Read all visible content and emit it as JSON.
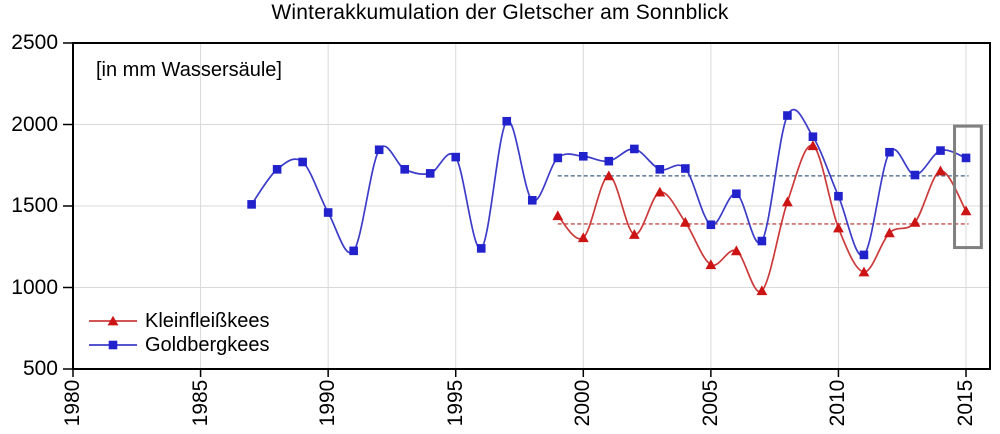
{
  "title": "Winterakkumulation der Gletscher am Sonnblick",
  "chart_data": {
    "type": "line",
    "title": "Winterakkumulation der Gletscher am Sonnblick",
    "unit_label": "[in mm Wassersäule]",
    "xlabel": "",
    "ylabel": "",
    "x_range": [
      1980,
      2015.94
    ],
    "y_range": [
      500,
      2500
    ],
    "x_ticks": [
      1980,
      1985,
      1990,
      1995,
      2000,
      2005,
      2010,
      2015
    ],
    "y_ticks": [
      500,
      1000,
      1500,
      2000,
      2500
    ],
    "grid": {
      "vertical": [
        1985,
        1990,
        1995,
        2000,
        2005,
        2010,
        2015
      ],
      "horizontal": [
        1000,
        1500,
        2000
      ]
    },
    "legend_position": "bottom-left-inside",
    "series": [
      {
        "name": "Kleinfleißkees",
        "marker": "triangle",
        "line_color": "#cc3b3b",
        "marker_color": "#cc1414",
        "x": [
          1999,
          2000,
          2001,
          2002,
          2003,
          2004,
          2005,
          2006,
          2007,
          2008,
          2009,
          2010,
          2011,
          2012,
          2013,
          2014,
          2015
        ],
        "values": [
          1440,
          1305,
          1685,
          1325,
          1585,
          1400,
          1140,
          1225,
          980,
          1525,
          1870,
          1365,
          1095,
          1335,
          1400,
          1715,
          1470
        ]
      },
      {
        "name": "Goldbergkees",
        "marker": "square",
        "line_color": "#3c3cc8",
        "marker_color": "#2222cc",
        "x": [
          1987,
          1988,
          1989,
          1990,
          1991,
          1992,
          1993,
          1994,
          1995,
          1996,
          1997,
          1998,
          1999,
          2000,
          2001,
          2002,
          2003,
          2004,
          2005,
          2006,
          2007,
          2008,
          2009,
          2010,
          2011,
          2012,
          2013,
          2014,
          2015
        ],
        "values": [
          1510,
          1725,
          1770,
          1460,
          1225,
          1845,
          1725,
          1700,
          1800,
          1240,
          2020,
          1535,
          1795,
          1805,
          1775,
          1850,
          1725,
          1730,
          1385,
          1575,
          1285,
          2055,
          1925,
          1560,
          1200,
          1830,
          1690,
          1840,
          1795
        ]
      }
    ],
    "reference_lines": [
      {
        "name": "goldbergkees-mean",
        "value": 1685,
        "color": "#3c5f85",
        "x_start": 1999,
        "x_end": 2015.1
      },
      {
        "name": "kleinfleisskees-mean",
        "value": 1390,
        "color": "#c0504d",
        "x_start": 1999,
        "x_end": 2015.1
      }
    ],
    "highlight_box": {
      "x_start": 2014.55,
      "x_end": 2015.6,
      "value_top": 1990,
      "value_bottom": 1245,
      "color": "#808080"
    },
    "colors": {
      "grid": "#d9d9d9",
      "axis": "#000000",
      "background": "#ffffff"
    }
  },
  "legend": {
    "items": [
      {
        "label": "Kleinfleißkees"
      },
      {
        "label": "Goldbergkees"
      }
    ]
  }
}
